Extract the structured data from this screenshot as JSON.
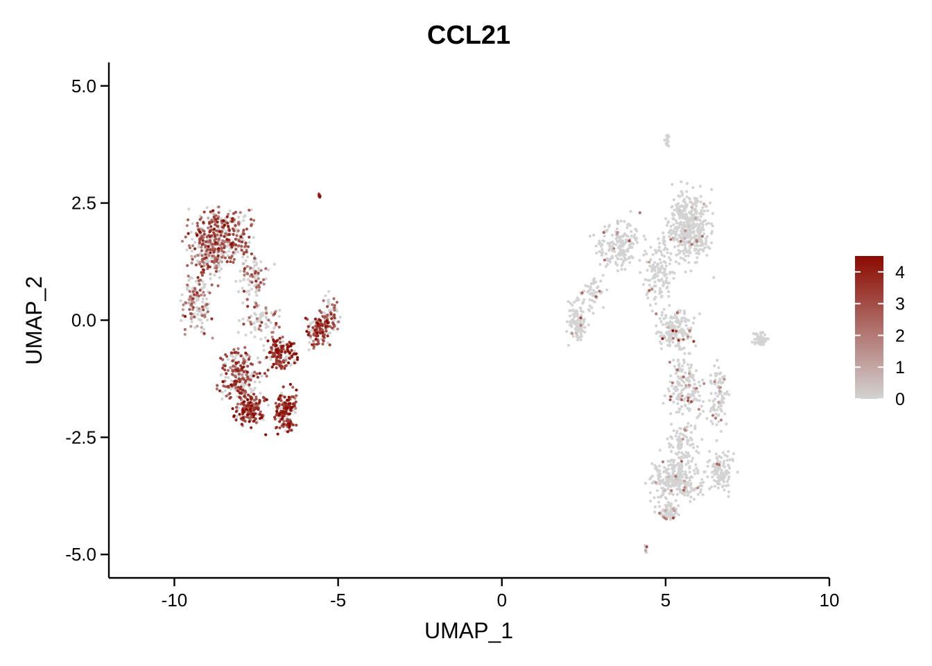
{
  "chart_data": {
    "type": "scatter",
    "title": "CCL21",
    "xlabel": "UMAP_1",
    "ylabel": "UMAP_2",
    "xlim": [
      -12,
      10
    ],
    "ylim": [
      -5.5,
      5.5
    ],
    "x_ticks": [
      -10,
      -5,
      0,
      5,
      10
    ],
    "x_tick_labels": [
      "-10",
      "-5",
      "0",
      "5",
      "10"
    ],
    "y_ticks": [
      -5,
      -2.5,
      0,
      2.5,
      5
    ],
    "y_tick_labels": [
      "-5.0",
      "-2.5",
      "0.0",
      "2.5",
      "5.0"
    ],
    "grid": false,
    "legend": {
      "placement": "right",
      "type": "colorbar",
      "range": [
        0,
        4.5
      ],
      "ticks": [
        0,
        1,
        2,
        3,
        4
      ],
      "tick_labels": [
        "0",
        "1",
        "2",
        "3",
        "4"
      ],
      "low_color": "#d3d3d3",
      "high_color": "#8b0a00"
    },
    "colors": {
      "low": "#d3d3d3",
      "high": "#8b0a00"
    },
    "clusters": [
      {
        "center": [
          -9.0,
          1.6
        ],
        "spread": [
          0.5,
          0.55
        ],
        "n": 260,
        "expr_prob": 0.55,
        "expr_mean": 2.6
      },
      {
        "center": [
          -8.3,
          1.8
        ],
        "spread": [
          0.55,
          0.45
        ],
        "n": 220,
        "expr_prob": 0.6,
        "expr_mean": 2.9
      },
      {
        "center": [
          -9.3,
          0.4
        ],
        "spread": [
          0.35,
          0.5
        ],
        "n": 140,
        "expr_prob": 0.4,
        "expr_mean": 2.2
      },
      {
        "center": [
          -7.6,
          0.9
        ],
        "spread": [
          0.4,
          0.35
        ],
        "n": 90,
        "expr_prob": 0.35,
        "expr_mean": 2.2
      },
      {
        "center": [
          -7.3,
          0.0
        ],
        "spread": [
          0.5,
          0.35
        ],
        "n": 80,
        "expr_prob": 0.4,
        "expr_mean": 2.4
      },
      {
        "center": [
          -8.0,
          -1.2
        ],
        "spread": [
          0.5,
          0.45
        ],
        "n": 220,
        "expr_prob": 0.65,
        "expr_mean": 3.0
      },
      {
        "center": [
          -7.7,
          -1.9
        ],
        "spread": [
          0.35,
          0.3
        ],
        "n": 170,
        "expr_prob": 0.7,
        "expr_mean": 3.4
      },
      {
        "center": [
          -6.6,
          -1.9
        ],
        "spread": [
          0.25,
          0.35
        ],
        "n": 170,
        "expr_prob": 0.75,
        "expr_mean": 3.6
      },
      {
        "center": [
          -6.7,
          -0.7
        ],
        "spread": [
          0.4,
          0.25
        ],
        "n": 150,
        "expr_prob": 0.75,
        "expr_mean": 3.7
      },
      {
        "center": [
          -5.6,
          -0.2
        ],
        "spread": [
          0.3,
          0.3
        ],
        "n": 130,
        "expr_prob": 0.65,
        "expr_mean": 3.2
      },
      {
        "center": [
          -5.2,
          0.1
        ],
        "spread": [
          0.2,
          0.3
        ],
        "n": 70,
        "expr_prob": 0.45,
        "expr_mean": 2.6
      },
      {
        "center": [
          -5.55,
          2.65
        ],
        "spread": [
          0.05,
          0.04
        ],
        "n": 8,
        "expr_prob": 0.9,
        "expr_mean": 3.5
      },
      {
        "center": [
          5.7,
          2.0
        ],
        "spread": [
          0.55,
          0.6
        ],
        "n": 420,
        "expr_prob": 0.04,
        "expr_mean": 1.6
      },
      {
        "center": [
          3.6,
          1.6
        ],
        "spread": [
          0.55,
          0.4
        ],
        "n": 180,
        "expr_prob": 0.05,
        "expr_mean": 1.6
      },
      {
        "center": [
          4.8,
          1.0
        ],
        "spread": [
          0.4,
          0.5
        ],
        "n": 120,
        "expr_prob": 0.04,
        "expr_mean": 1.8
      },
      {
        "center": [
          2.3,
          0.0
        ],
        "spread": [
          0.25,
          0.35
        ],
        "n": 110,
        "expr_prob": 0.04,
        "expr_mean": 1.5
      },
      {
        "center": [
          2.8,
          0.6
        ],
        "spread": [
          0.3,
          0.3
        ],
        "n": 50,
        "expr_prob": 0.03,
        "expr_mean": 1.5
      },
      {
        "center": [
          5.3,
          -0.2
        ],
        "spread": [
          0.45,
          0.4
        ],
        "n": 160,
        "expr_prob": 0.07,
        "expr_mean": 2.2
      },
      {
        "center": [
          5.6,
          -1.4
        ],
        "spread": [
          0.45,
          0.5
        ],
        "n": 160,
        "expr_prob": 0.1,
        "expr_mean": 2.2
      },
      {
        "center": [
          6.6,
          -1.6
        ],
        "spread": [
          0.25,
          0.6
        ],
        "n": 90,
        "expr_prob": 0.1,
        "expr_mean": 2.0
      },
      {
        "center": [
          5.5,
          -2.6
        ],
        "spread": [
          0.4,
          0.4
        ],
        "n": 90,
        "expr_prob": 0.06,
        "expr_mean": 1.8
      },
      {
        "center": [
          5.3,
          -3.4
        ],
        "spread": [
          0.65,
          0.35
        ],
        "n": 260,
        "expr_prob": 0.06,
        "expr_mean": 1.8
      },
      {
        "center": [
          6.7,
          -3.2
        ],
        "spread": [
          0.3,
          0.35
        ],
        "n": 110,
        "expr_prob": 0.06,
        "expr_mean": 1.8
      },
      {
        "center": [
          5.1,
          -4.1
        ],
        "spread": [
          0.3,
          0.15
        ],
        "n": 70,
        "expr_prob": 0.06,
        "expr_mean": 1.8
      },
      {
        "center": [
          7.9,
          -0.4
        ],
        "spread": [
          0.2,
          0.1
        ],
        "n": 50,
        "expr_prob": 0.0,
        "expr_mean": 0
      },
      {
        "center": [
          5.05,
          3.85
        ],
        "spread": [
          0.08,
          0.15
        ],
        "n": 12,
        "expr_prob": 0.0,
        "expr_mean": 0
      },
      {
        "center": [
          4.4,
          -4.85
        ],
        "spread": [
          0.05,
          0.1
        ],
        "n": 8,
        "expr_prob": 0.2,
        "expr_mean": 1.5
      }
    ]
  }
}
